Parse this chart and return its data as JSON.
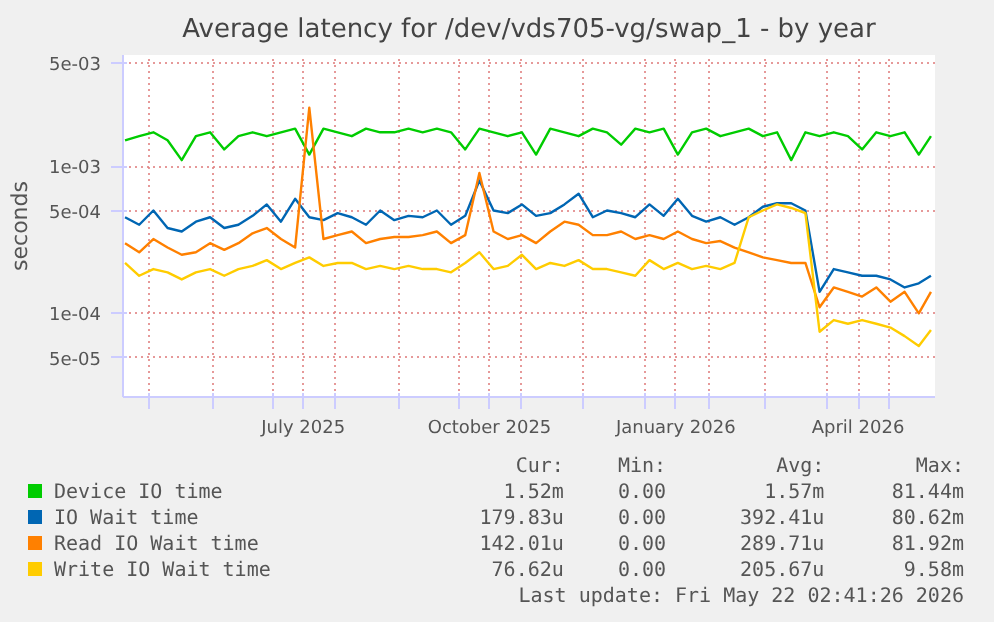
{
  "chart_data": {
    "type": "line",
    "title": "Average latency for /dev/vds705-vg/swap_1 - by year",
    "ylabel": "seconds",
    "x": [
      "2025-04-19",
      "2025-04-26",
      "2025-05-03",
      "2025-05-10",
      "2025-05-17",
      "2025-05-24",
      "2025-05-31",
      "2025-06-07",
      "2025-06-14",
      "2025-06-21",
      "2025-06-28",
      "2025-07-05",
      "2025-07-12",
      "2025-07-19",
      "2025-07-26",
      "2025-08-02",
      "2025-08-09",
      "2025-08-16",
      "2025-08-23",
      "2025-08-30",
      "2025-09-06",
      "2025-09-13",
      "2025-09-20",
      "2025-09-27",
      "2025-10-04",
      "2025-10-11",
      "2025-10-18",
      "2025-10-25",
      "2025-11-01",
      "2025-11-08",
      "2025-11-15",
      "2025-11-22",
      "2025-11-29",
      "2025-12-06",
      "2025-12-13",
      "2025-12-20",
      "2025-12-27",
      "2026-01-03",
      "2026-01-10",
      "2026-01-17",
      "2026-01-24",
      "2026-01-31",
      "2026-02-07",
      "2026-02-14",
      "2026-02-21",
      "2026-02-28",
      "2026-03-07",
      "2026-03-14",
      "2026-03-21",
      "2026-03-28",
      "2026-04-04",
      "2026-04-11",
      "2026-04-18",
      "2026-04-25",
      "2026-05-02",
      "2026-05-09",
      "2026-05-16",
      "2026-05-22"
    ],
    "series": [
      {
        "name": "Device IO time",
        "color": "#00cc00",
        "values": [
          0.0015,
          0.0016,
          0.0017,
          0.0015,
          0.0011,
          0.0016,
          0.0017,
          0.0013,
          0.0016,
          0.0017,
          0.0016,
          0.0017,
          0.0018,
          0.0012,
          0.0018,
          0.0017,
          0.0016,
          0.0018,
          0.0017,
          0.0017,
          0.0018,
          0.0017,
          0.0018,
          0.0017,
          0.0013,
          0.0018,
          0.0017,
          0.0016,
          0.0017,
          0.0012,
          0.0018,
          0.0017,
          0.0016,
          0.0018,
          0.0017,
          0.0014,
          0.0018,
          0.0017,
          0.0018,
          0.0012,
          0.0017,
          0.0018,
          0.0016,
          0.0017,
          0.0018,
          0.0016,
          0.0017,
          0.0011,
          0.0017,
          0.0016,
          0.0017,
          0.0016,
          0.0013,
          0.0017,
          0.0016,
          0.0017,
          0.0012,
          0.0016
        ]
      },
      {
        "name": "IO Wait time",
        "color": "#0066b3",
        "values": [
          0.00045,
          0.0004,
          0.0005,
          0.00038,
          0.00036,
          0.00042,
          0.00045,
          0.00038,
          0.0004,
          0.00046,
          0.00055,
          0.00042,
          0.0006,
          0.00045,
          0.00043,
          0.00048,
          0.00045,
          0.0004,
          0.0005,
          0.00043,
          0.00046,
          0.00045,
          0.0005,
          0.0004,
          0.00046,
          0.0008,
          0.0005,
          0.00048,
          0.00055,
          0.00046,
          0.00048,
          0.00055,
          0.00065,
          0.00045,
          0.0005,
          0.00048,
          0.00045,
          0.00055,
          0.00046,
          0.0006,
          0.00046,
          0.00042,
          0.00045,
          0.0004,
          0.00045,
          0.00053,
          0.00056,
          0.00056,
          0.0005,
          0.00014,
          0.0002,
          0.00019,
          0.00018,
          0.00018,
          0.00017,
          0.00015,
          0.00016,
          0.00018
        ]
      },
      {
        "name": "Read IO Wait time",
        "color": "#ff8000",
        "values": [
          0.0003,
          0.00026,
          0.00032,
          0.00028,
          0.00025,
          0.00026,
          0.0003,
          0.00027,
          0.0003,
          0.00035,
          0.00038,
          0.00032,
          0.00028,
          0.0025,
          0.00032,
          0.00034,
          0.00036,
          0.0003,
          0.00032,
          0.00033,
          0.00033,
          0.00034,
          0.00036,
          0.0003,
          0.00034,
          0.0009,
          0.00036,
          0.00032,
          0.00034,
          0.0003,
          0.00036,
          0.00042,
          0.0004,
          0.00034,
          0.00034,
          0.00036,
          0.00032,
          0.00034,
          0.00032,
          0.00036,
          0.00032,
          0.0003,
          0.00031,
          0.00028,
          0.00026,
          0.00024,
          0.00023,
          0.00022,
          0.00022,
          0.00011,
          0.00015,
          0.00014,
          0.00013,
          0.00015,
          0.00012,
          0.00014,
          0.0001,
          0.00014
        ]
      },
      {
        "name": "Write IO Wait time",
        "color": "#ffcc00",
        "values": [
          0.00022,
          0.00018,
          0.0002,
          0.00019,
          0.00017,
          0.00019,
          0.0002,
          0.00018,
          0.0002,
          0.00021,
          0.00023,
          0.0002,
          0.00022,
          0.00024,
          0.00021,
          0.00022,
          0.00022,
          0.0002,
          0.00021,
          0.0002,
          0.00021,
          0.0002,
          0.0002,
          0.00019,
          0.00022,
          0.00026,
          0.0002,
          0.00021,
          0.00025,
          0.0002,
          0.00022,
          0.00021,
          0.00023,
          0.0002,
          0.0002,
          0.00019,
          0.00018,
          0.00023,
          0.0002,
          0.00022,
          0.0002,
          0.00021,
          0.0002,
          0.00022,
          0.00045,
          0.0005,
          0.00055,
          0.00052,
          0.00048,
          7.5e-05,
          9e-05,
          8.5e-05,
          9e-05,
          8.5e-05,
          8e-05,
          7e-05,
          6e-05,
          7.7e-05
        ]
      }
    ],
    "xlim": [
      "2025-04-18",
      "2026-05-24"
    ],
    "xticks": [
      {
        "value": "2025-05-01",
        "label": null
      },
      {
        "value": "2025-06-01",
        "label": null
      },
      {
        "value": "2025-07-01",
        "label": null
      },
      {
        "value": "2025-07-16",
        "label": "July 2025"
      },
      {
        "value": "2025-08-01",
        "label": null
      },
      {
        "value": "2025-09-01",
        "label": null
      },
      {
        "value": "2025-10-01",
        "label": null
      },
      {
        "value": "2025-10-16",
        "label": "October 2025"
      },
      {
        "value": "2025-11-01",
        "label": null
      },
      {
        "value": "2025-12-01",
        "label": null
      },
      {
        "value": "2026-01-01",
        "label": null
      },
      {
        "value": "2026-01-16",
        "label": "January 2026"
      },
      {
        "value": "2026-02-01",
        "label": null
      },
      {
        "value": "2026-03-01",
        "label": null
      },
      {
        "value": "2026-04-01",
        "label": null
      },
      {
        "value": "2026-04-16",
        "label": "April 2026"
      },
      {
        "value": "2026-05-01",
        "label": null
      }
    ],
    "ylim": [
      2.7e-05,
      0.0057
    ],
    "yticks": [
      {
        "value": 5e-05,
        "label": "5e-05"
      },
      {
        "value": 0.0001,
        "label": "1e-04"
      },
      {
        "value": 0.0005,
        "label": "5e-04"
      },
      {
        "value": 0.001,
        "label": "1e-03"
      },
      {
        "value": 0.005,
        "label": "5e-03"
      }
    ],
    "log": "y",
    "grid": true,
    "legend": "bottom",
    "annotations": [
      "Cur:",
      "Min:",
      "Avg:",
      "Max:",
      "1.52m",
      "0.00",
      "1.57m",
      "81.44m",
      "179.83u",
      "0.00",
      "392.41u",
      "80.62m",
      "142.01u",
      "0.00",
      "289.71u",
      "81.92m",
      "76.62u",
      "0.00",
      "205.67u",
      "9.58m",
      "Last update: Fri May 22 02:41:26 2026"
    ]
  }
}
